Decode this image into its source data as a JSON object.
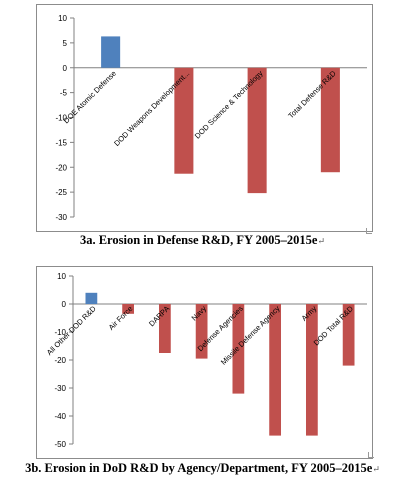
{
  "chart_data": [
    {
      "type": "bar",
      "categories": [
        "DOE Atomic Defense",
        "DOD Weapons Development...",
        "DOD Science & Technology",
        "Total Defense R&D"
      ],
      "values": [
        6.3,
        -21.3,
        -25.2,
        -21.0
      ],
      "ylim": [
        -30,
        10
      ],
      "yticks": [
        10,
        5,
        0,
        -5,
        -10,
        -15,
        -20,
        -25,
        -30
      ],
      "grid": false,
      "colors": {
        "positive": "#4f81bd",
        "negative": "#c0504d"
      }
    },
    {
      "type": "bar",
      "categories": [
        "All Other DOD R&D",
        "Air Force",
        "DARPA",
        "Navy",
        "Defense Agencies",
        "Missile Defense Agency",
        "Army",
        "DOD Total R&D"
      ],
      "values": [
        4.0,
        -3.5,
        -17.5,
        -19.5,
        -32.0,
        -47.0,
        -47.0,
        -22.0
      ],
      "ylim": [
        -50,
        10
      ],
      "yticks": [
        10,
        0,
        -10,
        -20,
        -30,
        -40,
        -50
      ],
      "grid": false,
      "colors": {
        "positive": "#4f81bd",
        "negative": "#c0504d"
      }
    }
  ],
  "captions": {
    "chart1": "3a. Erosion in Defense R&D, FY 2005–2015e",
    "chart2": "3b. Erosion in DoD R&D by Agency/Department, FY 2005–2015e"
  }
}
